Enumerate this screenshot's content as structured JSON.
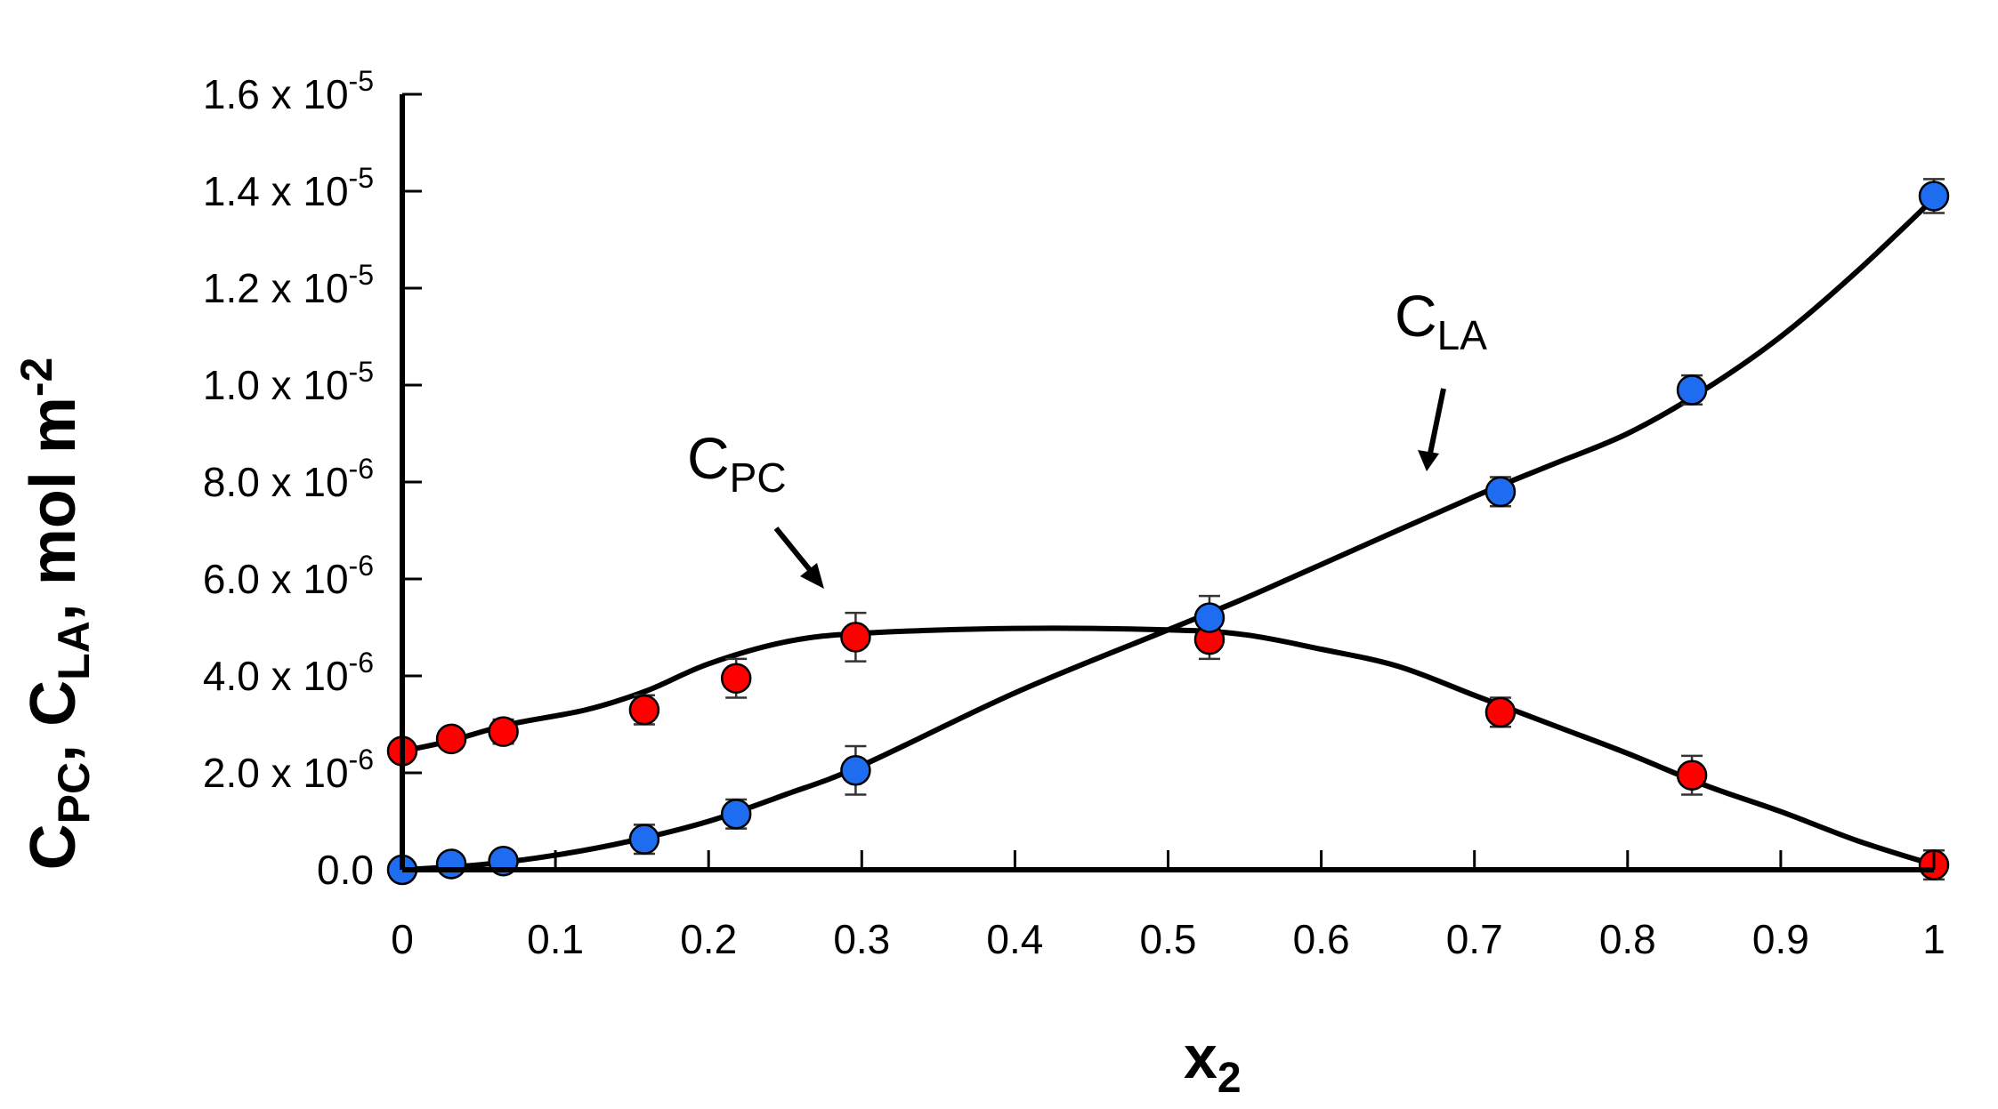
{
  "chart_data": {
    "type": "scatter",
    "xlabel": {
      "main": "x",
      "sub": "2"
    },
    "ylabel": {
      "c1": "C",
      "s1": "PC",
      "mid": ", C",
      "s2": "LA",
      "tail": ", mol m",
      "sup": "-2"
    },
    "xlim": [
      0,
      1
    ],
    "ylim": [
      0,
      1.6e-05
    ],
    "x_ticks": [
      "0",
      "0.1",
      "0.2",
      "0.3",
      "0.4",
      "0.5",
      "0.6",
      "0.7",
      "0.8",
      "0.9",
      "1"
    ],
    "y_ticks": [
      {
        "value": 0,
        "mant": "0.0",
        "exp": ""
      },
      {
        "value": 2e-06,
        "mant": "2.0 x 10",
        "exp": "-6"
      },
      {
        "value": 4e-06,
        "mant": "4.0 x 10",
        "exp": "-6"
      },
      {
        "value": 6e-06,
        "mant": "6.0 x 10",
        "exp": "-6"
      },
      {
        "value": 8e-06,
        "mant": "8.0 x 10",
        "exp": "-6"
      },
      {
        "value": 1e-05,
        "mant": "1.0 x 10",
        "exp": "-5"
      },
      {
        "value": 1.2e-05,
        "mant": "1.2 x 10",
        "exp": "-5"
      },
      {
        "value": 1.4e-05,
        "mant": "1.4 x 10",
        "exp": "-5"
      },
      {
        "value": 1.6e-05,
        "mant": "1.6 x 10",
        "exp": "-5"
      }
    ],
    "series": [
      {
        "name": "C_PC",
        "color": "#ff0000",
        "points": [
          {
            "x": 0.0,
            "y": 2.45e-06,
            "err": 2e-07
          },
          {
            "x": 0.032,
            "y": 2.7e-06,
            "err": 2e-07
          },
          {
            "x": 0.066,
            "y": 2.85e-06,
            "err": 2.5e-07
          },
          {
            "x": 0.158,
            "y": 3.3e-06,
            "err": 3e-07
          },
          {
            "x": 0.218,
            "y": 3.95e-06,
            "err": 4e-07
          },
          {
            "x": 0.296,
            "y": 4.8e-06,
            "err": 5e-07
          },
          {
            "x": 0.527,
            "y": 4.75e-06,
            "err": 4e-07
          },
          {
            "x": 0.717,
            "y": 3.25e-06,
            "err": 3e-07
          },
          {
            "x": 0.842,
            "y": 1.95e-06,
            "err": 4e-07
          },
          {
            "x": 1.0,
            "y": 1e-07,
            "err": 3e-07
          }
        ],
        "curve": [
          [
            0,
            2.45e-06
          ],
          [
            0.03,
            2.65e-06
          ],
          [
            0.07,
            3e-06
          ],
          [
            0.12,
            3.3e-06
          ],
          [
            0.16,
            3.7e-06
          ],
          [
            0.2,
            4.25e-06
          ],
          [
            0.25,
            4.7e-06
          ],
          [
            0.3,
            4.88e-06
          ],
          [
            0.4,
            4.98e-06
          ],
          [
            0.5,
            4.95e-06
          ],
          [
            0.55,
            4.85e-06
          ],
          [
            0.6,
            4.55e-06
          ],
          [
            0.65,
            4.2e-06
          ],
          [
            0.7,
            3.6e-06
          ],
          [
            0.75,
            3e-06
          ],
          [
            0.8,
            2.4e-06
          ],
          [
            0.85,
            1.75e-06
          ],
          [
            0.9,
            1.2e-06
          ],
          [
            0.95,
            6e-07
          ],
          [
            1.0,
            1e-07
          ]
        ]
      },
      {
        "name": "C_LA",
        "color": "#1e6cf0",
        "points": [
          {
            "x": 0.0,
            "y": 0.0,
            "err": 2e-07
          },
          {
            "x": 0.032,
            "y": 1.2e-07,
            "err": 2e-07
          },
          {
            "x": 0.066,
            "y": 1.8e-07,
            "err": 2e-07
          },
          {
            "x": 0.158,
            "y": 6.3e-07,
            "err": 3e-07
          },
          {
            "x": 0.218,
            "y": 1.15e-06,
            "err": 3e-07
          },
          {
            "x": 0.296,
            "y": 2.05e-06,
            "err": 5e-07
          },
          {
            "x": 0.527,
            "y": 5.2e-06,
            "err": 4.5e-07
          },
          {
            "x": 0.717,
            "y": 7.8e-06,
            "err": 3e-07
          },
          {
            "x": 0.842,
            "y": 9.9e-06,
            "err": 3e-07
          },
          {
            "x": 1.0,
            "y": 1.39e-05,
            "err": 3.5e-07
          }
        ],
        "curve": [
          [
            0,
            0.0
          ],
          [
            0.05,
            1e-07
          ],
          [
            0.1,
            3e-07
          ],
          [
            0.15,
            6e-07
          ],
          [
            0.2,
            1e-06
          ],
          [
            0.25,
            1.55e-06
          ],
          [
            0.3,
            2.15e-06
          ],
          [
            0.4,
            3.65e-06
          ],
          [
            0.5,
            4.95e-06
          ],
          [
            0.55,
            5.6e-06
          ],
          [
            0.6,
            6.3e-06
          ],
          [
            0.7,
            7.7e-06
          ],
          [
            0.75,
            8.35e-06
          ],
          [
            0.8,
            9e-06
          ],
          [
            0.85,
            9.9e-06
          ],
          [
            0.9,
            1.1e-05
          ],
          [
            0.95,
            1.235e-05
          ],
          [
            1.0,
            1.385e-05
          ]
        ]
      }
    ],
    "annotations": [
      {
        "series": "C_PC",
        "main": "C",
        "sub": "PC"
      },
      {
        "series": "C_LA",
        "main": "C",
        "sub": "LA"
      }
    ]
  }
}
